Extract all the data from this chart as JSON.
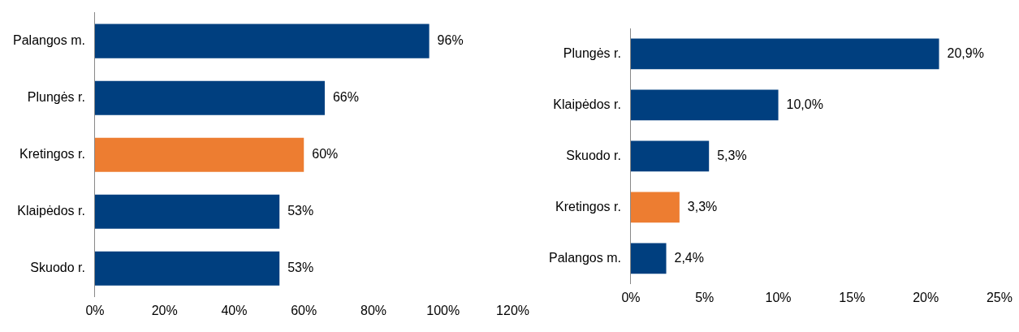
{
  "chart_data": [
    {
      "type": "bar",
      "orientation": "horizontal",
      "categories": [
        "Palangos m.",
        "Plungės r.",
        "Kretingos r.",
        "Klaipėdos r.",
        "Skuodo r."
      ],
      "values": [
        96,
        66,
        60,
        53,
        53
      ],
      "colors": [
        "#003f7f",
        "#003f7f",
        "#ed7d31",
        "#003f7f",
        "#003f7f"
      ],
      "value_labels": [
        "96%",
        "66%",
        "60%",
        "53%",
        "53%"
      ],
      "xlim": [
        0,
        120
      ],
      "xticks": [
        {
          "value": 0,
          "label": "0%"
        },
        {
          "value": 20,
          "label": "20%"
        },
        {
          "value": 40,
          "label": "40%"
        },
        {
          "value": 60,
          "label": "60%"
        },
        {
          "value": 80,
          "label": "80%"
        },
        {
          "value": 100,
          "label": "100%"
        },
        {
          "value": 120,
          "label": "120%"
        }
      ],
      "grid": false,
      "legend": false
    },
    {
      "type": "bar",
      "orientation": "horizontal",
      "categories": [
        "Plungės r.",
        "Klaipėdos r.",
        "Skuodo r.",
        "Kretingos r.",
        "Palangos m."
      ],
      "values": [
        20.9,
        10.0,
        5.3,
        3.3,
        2.4
      ],
      "colors": [
        "#003f7f",
        "#003f7f",
        "#003f7f",
        "#ed7d31",
        "#003f7f"
      ],
      "value_labels": [
        "20,9%",
        "10,0%",
        "5,3%",
        "3,3%",
        "2,4%"
      ],
      "xlim": [
        0,
        25
      ],
      "xticks": [
        {
          "value": 0,
          "label": "0%"
        },
        {
          "value": 5,
          "label": "5%"
        },
        {
          "value": 10,
          "label": "10%"
        },
        {
          "value": 15,
          "label": "15%"
        },
        {
          "value": 20,
          "label": "20%"
        },
        {
          "value": 25,
          "label": "25%"
        }
      ],
      "grid": false,
      "legend": false
    }
  ]
}
